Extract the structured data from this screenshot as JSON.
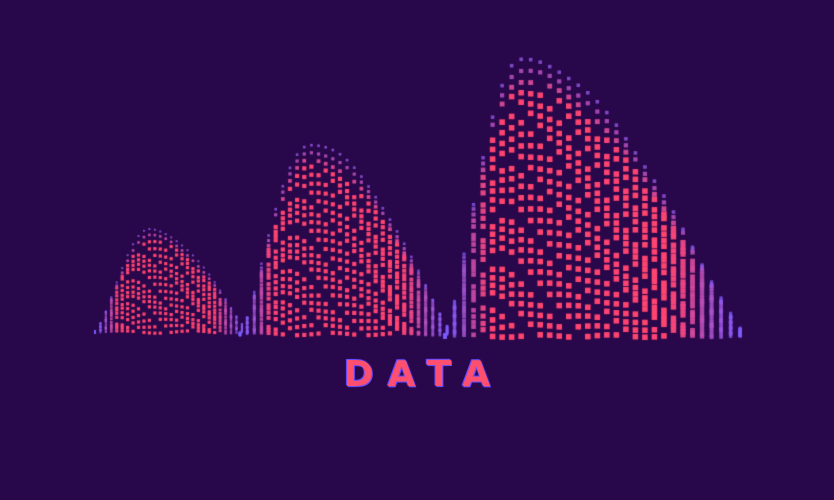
{
  "title": "DATA",
  "colors": {
    "background": "#28074a",
    "accent_pink": "#ff4470",
    "accent_purple": "#7b5cff",
    "title_color": "#ff4f6e"
  }
}
